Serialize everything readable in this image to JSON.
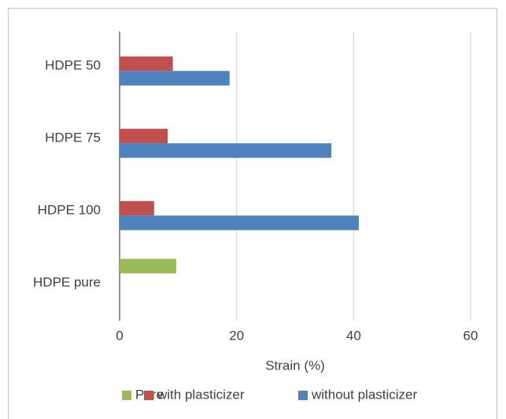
{
  "chart_data": {
    "type": "bar",
    "orientation": "horizontal",
    "categories": [
      "HDPE 50",
      "HDPE 75",
      "HDPE 100",
      "HDPE pure"
    ],
    "series": [
      {
        "name": "Pure",
        "color": "#9bbb59",
        "values": [
          null,
          null,
          null,
          9.7
        ]
      },
      {
        "name": "with plasticizer",
        "color": "#c0504d",
        "values": [
          9.1,
          8.2,
          5.9,
          null
        ]
      },
      {
        "name": "without plasticizer",
        "color": "#4f81bd",
        "values": [
          18.8,
          36.2,
          40.9,
          null
        ]
      }
    ],
    "xlabel": "Strain (%)",
    "xlim": [
      0,
      60
    ],
    "xticks": [
      0,
      20,
      40,
      60
    ],
    "grid": true,
    "legend": "bottom"
  }
}
